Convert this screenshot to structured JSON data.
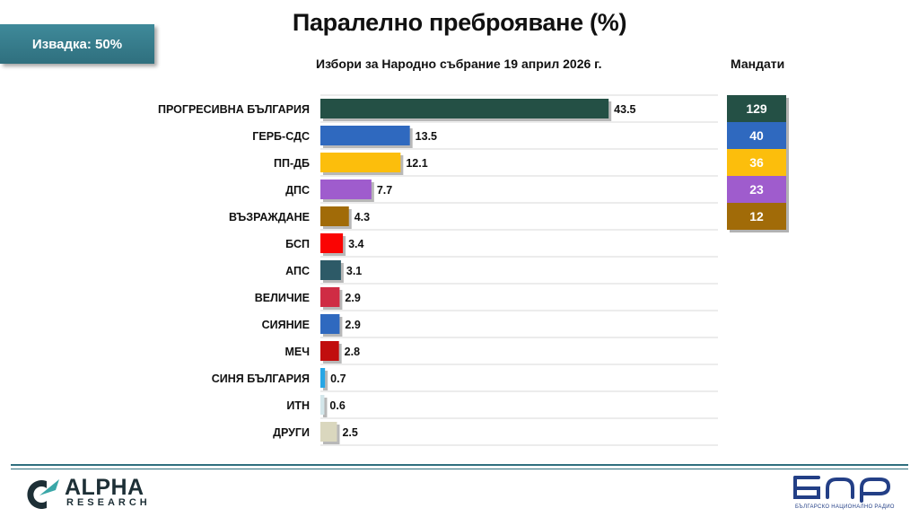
{
  "badge": {
    "sample_label": "Извадка: 50%"
  },
  "mandates_title": "Мандати",
  "chart_data": {
    "type": "bar",
    "orientation": "horizontal",
    "title": "Паралелно преброяване (%)",
    "subtitle": "Избори за Народно събрание 19 април 2026 г.",
    "xlim": [
      0,
      60
    ],
    "grid": true,
    "categories": [
      "ПРОГРЕСИВНА БЪЛГАРИЯ",
      "ГЕРБ-СДС",
      "ПП-ДБ",
      "ДПС",
      "ВЪЗРАЖДАНЕ",
      "БСП",
      "АПС",
      "ВЕЛИЧИЕ",
      "СИЯНИЕ",
      "МЕЧ",
      "СИНЯ БЪЛГАРИЯ",
      "ИТН",
      "ДРУГИ"
    ],
    "values": [
      43.5,
      13.5,
      12.1,
      7.7,
      4.3,
      3.4,
      3.1,
      2.9,
      2.9,
      2.8,
      0.7,
      0.6,
      2.5
    ],
    "value_labels": [
      "43.5",
      "13.5",
      "12.1",
      "7.7",
      "4.3",
      "3.4",
      "3.1",
      "2.9",
      "2.9",
      "2.8",
      "0.7",
      "0.6",
      "2.5"
    ],
    "colors": [
      "#245045",
      "#2f69bf",
      "#fcbe0c",
      "#9f5ccd",
      "#a16b08",
      "#fa0403",
      "#2d5a67",
      "#cf2c44",
      "#2f69bf",
      "#c10e0e",
      "#27a6e5",
      "#d3e6ea",
      "#dad7be"
    ],
    "mandates": [
      {
        "value": "129",
        "color": "#245045"
      },
      {
        "value": "40",
        "color": "#2f69bf"
      },
      {
        "value": "36",
        "color": "#fcbe0c"
      },
      {
        "value": "23",
        "color": "#9f5ccd"
      },
      {
        "value": "12",
        "color": "#a16b08"
      }
    ]
  },
  "footer": {
    "alpha_name": "ALPHA",
    "alpha_sub": "RESEARCH",
    "alpha_logo_icon": "alpha-research-logo-icon",
    "bnr_logo_icon": "bnr-logo-icon",
    "bnr_sub": "БЪЛГАРСКО НАЦИОНАЛНО РАДИО"
  }
}
